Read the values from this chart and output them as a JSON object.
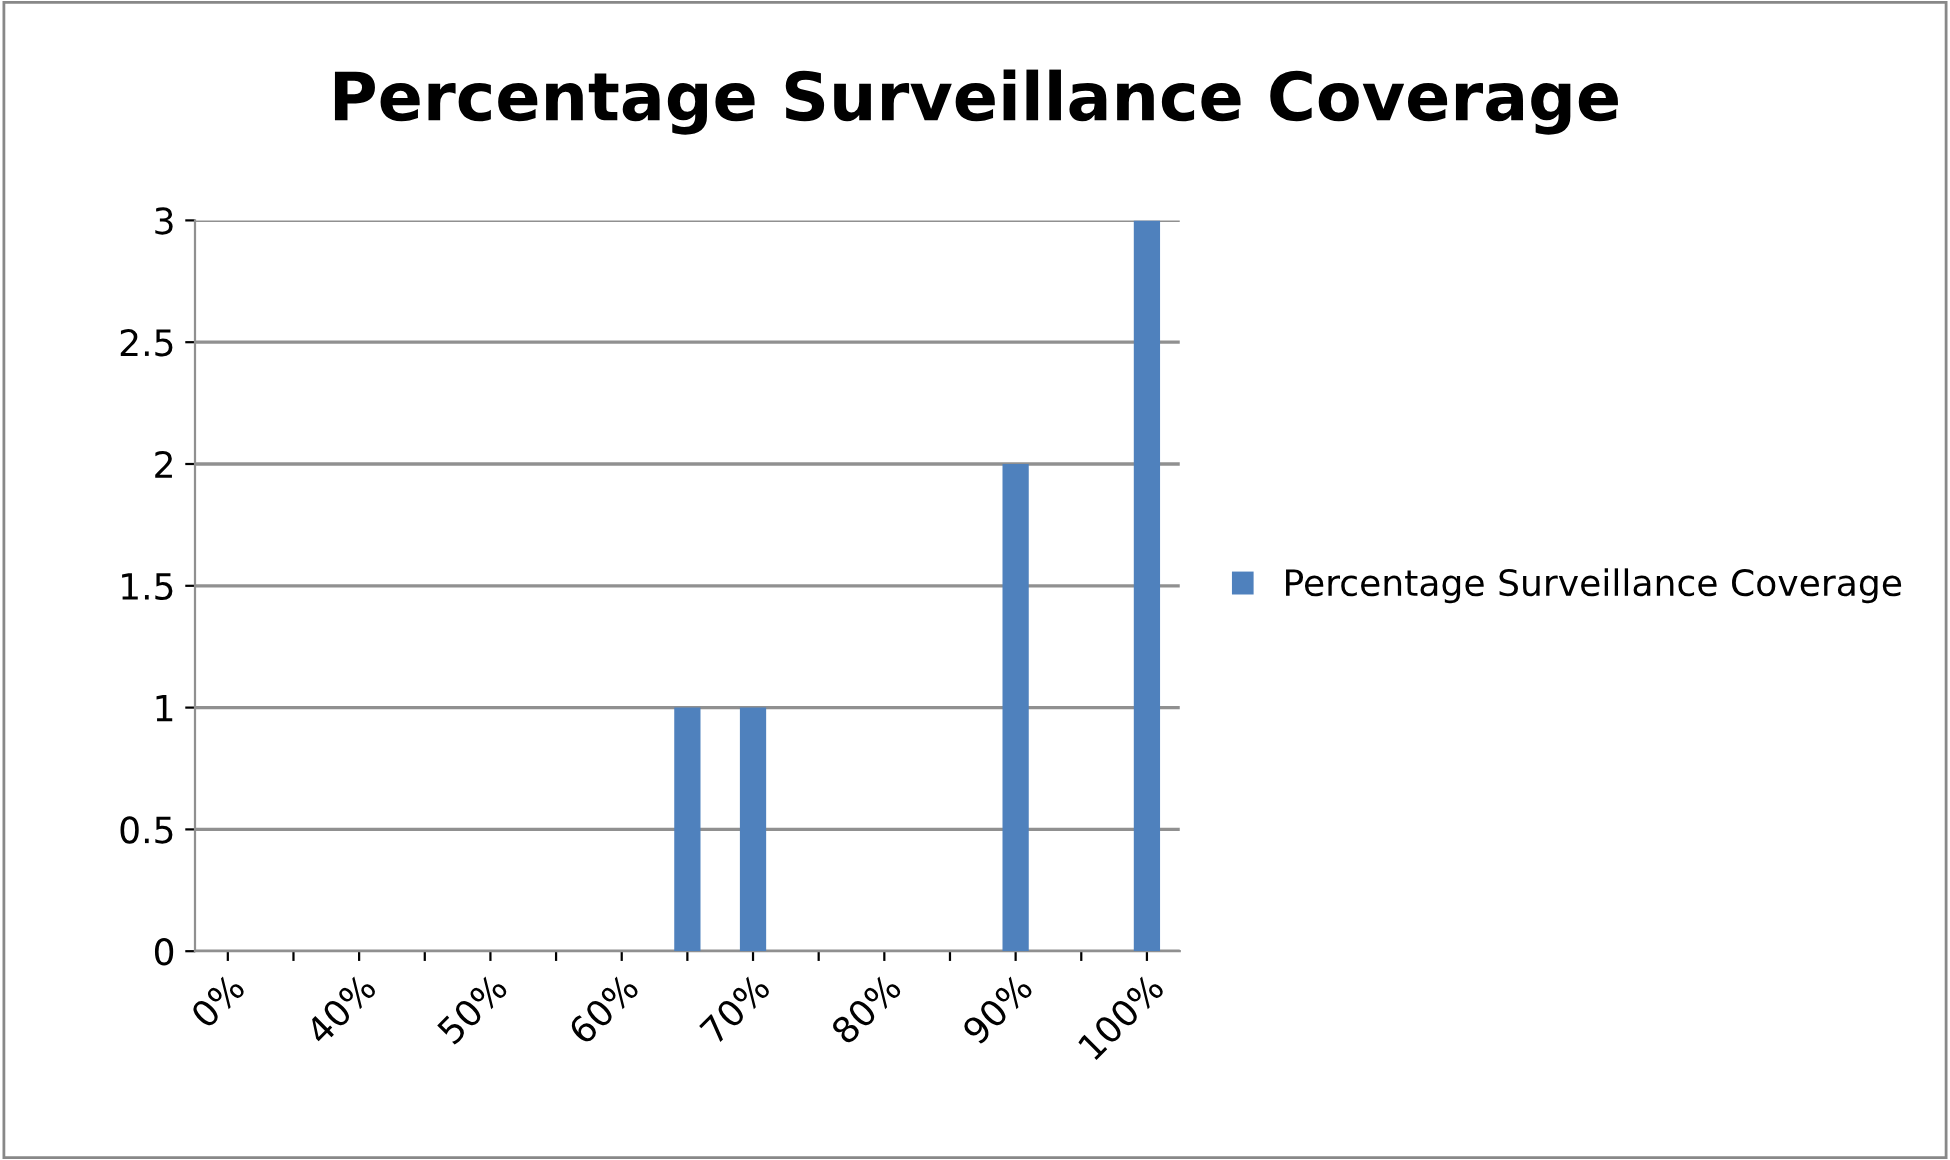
{
  "chart_data": {
    "type": "bar",
    "title": "Percentage Surveillance Coverage",
    "categories": [
      "0%",
      null,
      "40%",
      null,
      "50%",
      null,
      "60%",
      null,
      "70%",
      null,
      "80%",
      null,
      "90%",
      null,
      "100%"
    ],
    "series": [
      {
        "name": "Percentage Surveillance Coverage",
        "color": "#4f81bd",
        "values": [
          0,
          0,
          0,
          0,
          0,
          0,
          0,
          1,
          1,
          0,
          0,
          0,
          2,
          0,
          3
        ]
      }
    ],
    "ylim": [
      0,
      3
    ],
    "yticks": [
      0,
      {
        "value": 0.5,
        "label": "0.5"
      },
      1,
      {
        "value": 1.5,
        "label": "1.5"
      },
      2,
      {
        "value": 2.5,
        "label": "2.5"
      },
      3
    ],
    "grid": "y",
    "legend": "right"
  }
}
